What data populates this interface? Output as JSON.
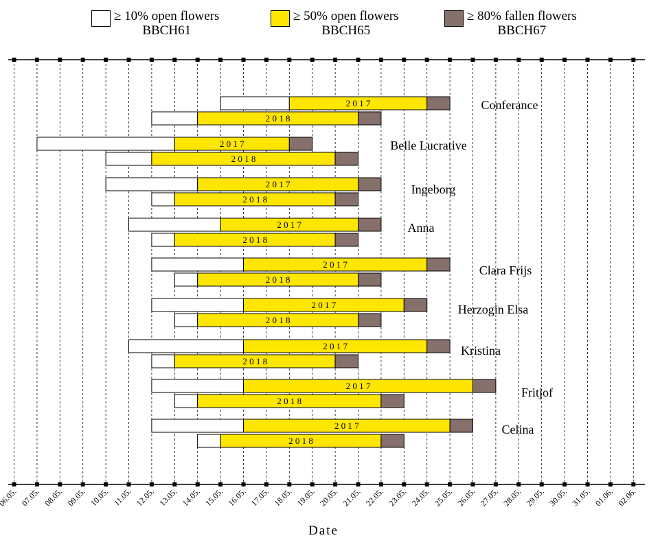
{
  "chart_data": {
    "type": "bar",
    "orientation": "horizontal",
    "xlabel": "Date",
    "x_tick_labels": [
      "06.05.",
      "07.05.",
      "08.05.",
      "09.05.",
      "10.05.",
      "11.05.",
      "12.05.",
      "13.05.",
      "14.05.",
      "15.05.",
      "16.05.",
      "17.05.",
      "18.05.",
      "19.05.",
      "20.05.",
      "21.05.",
      "22.05.",
      "23.05.",
      "24.05.",
      "25.05.",
      "26.05.",
      "27.05.",
      "28.05.",
      "29.05.",
      "30.05.",
      "31.05.",
      "01.06.",
      "02.06."
    ],
    "grid": "vertical dashed lines at each date",
    "legend_position": "top",
    "legend": [
      {
        "line1": "≥ 10% open flowers",
        "line2": "BBCH61",
        "color": "#ffffff"
      },
      {
        "line1": "≥ 50% open flowers",
        "line2": "BBCH65",
        "color": "#ffe600"
      },
      {
        "line1": "≥ 80% fallen flowers",
        "line2": "BBCH67",
        "color": "#85706b"
      }
    ],
    "varieties": [
      {
        "name": "Conferance",
        "bars": [
          {
            "year": "2 0 1 7",
            "bbch61": "15.05.",
            "bbch65": "18.05.",
            "bbch67": "24.05.",
            "end": "25.05."
          },
          {
            "year": "2 0 1 8",
            "bbch61": "12.05.",
            "bbch65": "14.05.",
            "bbch67": "21.05.",
            "end": "22.05."
          }
        ]
      },
      {
        "name": "Belle Lucrative",
        "bars": [
          {
            "year": "2 0 1 7",
            "bbch61": "07.05.",
            "bbch65": "13.05.",
            "bbch67": "18.05.",
            "end": "19.05."
          },
          {
            "year": "2 0 1 8",
            "bbch61": "10.05.",
            "bbch65": "12.05.",
            "bbch67": "20.05.",
            "end": "21.05."
          }
        ]
      },
      {
        "name": "Ingeborg",
        "bars": [
          {
            "year": "2 0 1 7",
            "bbch61": "10.05.",
            "bbch65": "14.05.",
            "bbch67": "21.05.",
            "end": "22.05."
          },
          {
            "year": "2 0 1 8",
            "bbch61": "12.05.",
            "bbch65": "13.05.",
            "bbch67": "20.05.",
            "end": "21.05."
          }
        ]
      },
      {
        "name": "Anna",
        "bars": [
          {
            "year": "2 0 1 7",
            "bbch61": "11.05.",
            "bbch65": "15.05.",
            "bbch67": "21.05.",
            "end": "22.05."
          },
          {
            "year": "2 0 1 8",
            "bbch61": "12.05.",
            "bbch65": "13.05.",
            "bbch67": "20.05.",
            "end": "21.05."
          }
        ]
      },
      {
        "name": "Clara Frijs",
        "bars": [
          {
            "year": "2 0 1 7",
            "bbch61": "12.05.",
            "bbch65": "16.05.",
            "bbch67": "24.05.",
            "end": "25.05."
          },
          {
            "year": "2 0 1 8",
            "bbch61": "13.05.",
            "bbch65": "14.05.",
            "bbch67": "21.05.",
            "end": "22.05."
          }
        ]
      },
      {
        "name": "Herzogin Elsa",
        "bars": [
          {
            "year": "2 0 1 7",
            "bbch61": "12.05.",
            "bbch65": "16.05.",
            "bbch67": "23.05.",
            "end": "24.05."
          },
          {
            "year": "2 0 1 8",
            "bbch61": "13.05.",
            "bbch65": "14.05.",
            "bbch67": "21.05.",
            "end": "22.05."
          }
        ]
      },
      {
        "name": "Kristina",
        "bars": [
          {
            "year": "2 0 1 7",
            "bbch61": "11.05.",
            "bbch65": "16.05.",
            "bbch67": "24.05.",
            "end": "25.05."
          },
          {
            "year": "2 0 1 8",
            "bbch61": "12.05.",
            "bbch65": "13.05.",
            "bbch67": "20.05.",
            "end": "21.05."
          }
        ]
      },
      {
        "name": "Fritjof",
        "bars": [
          {
            "year": "2 0 1 7",
            "bbch61": "12.05.",
            "bbch65": "16.05.",
            "bbch67": "26.05.",
            "end": "27.05."
          },
          {
            "year": "2 0 1 8",
            "bbch61": "13.05.",
            "bbch65": "14.05.",
            "bbch67": "22.05.",
            "end": "23.05."
          }
        ]
      },
      {
        "name": "Celina",
        "bars": [
          {
            "year": "2 0 1 7",
            "bbch61": "12.05.",
            "bbch65": "16.05.",
            "bbch67": "25.05.",
            "end": "26.05."
          },
          {
            "year": "2 0 1 8",
            "bbch61": "14.05.",
            "bbch65": "15.05.",
            "bbch67": "22.05.",
            "end": "23.05."
          }
        ]
      }
    ]
  }
}
